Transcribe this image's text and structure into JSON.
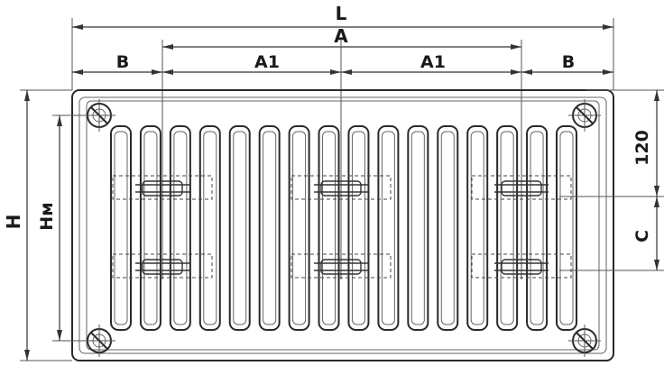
{
  "labels": {
    "L": "L",
    "A": "A",
    "A1_left": "A1",
    "A1_right": "A1",
    "B_left": "B",
    "B_right": "B",
    "H": "H",
    "Hm": "Hм",
    "dim_120": "120",
    "C": "C"
  },
  "fin_count": 16,
  "bracket_columns": 3,
  "bracket_rows": 2
}
